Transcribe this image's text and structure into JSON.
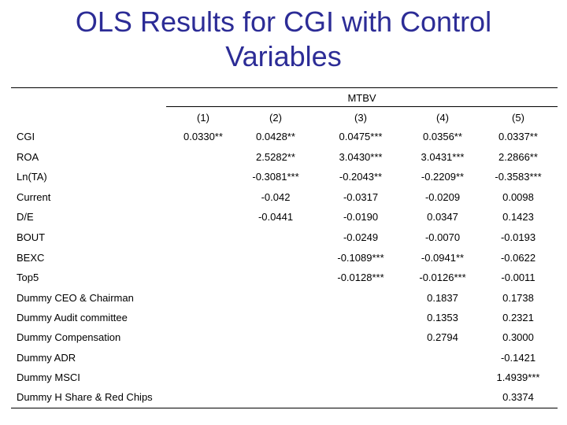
{
  "title_line1": "OLS Results for CGI with Control",
  "title_line2": "Variables",
  "table": {
    "group_header": "MTBV",
    "columns": [
      "(1)",
      "(2)",
      "(3)",
      "(4)",
      "(5)"
    ],
    "rows": [
      {
        "label": "CGI",
        "values": [
          "0.0330**",
          "0.0428**",
          "0.0475***",
          "0.0356**",
          "0.0337**"
        ]
      },
      {
        "label": "ROA",
        "values": [
          "",
          "2.5282**",
          "3.0430***",
          "3.0431***",
          "2.2866**"
        ]
      },
      {
        "label": "Ln(TA)",
        "values": [
          "",
          "-0.3081***",
          "-0.2043**",
          "-0.2209**",
          "-0.3583***"
        ]
      },
      {
        "label": "Current",
        "values": [
          "",
          "-0.042",
          "-0.0317",
          "-0.0209",
          "0.0098"
        ]
      },
      {
        "label": "D/E",
        "values": [
          "",
          "-0.0441",
          "-0.0190",
          "0.0347",
          "0.1423"
        ]
      },
      {
        "label": "BOUT",
        "values": [
          "",
          "",
          "-0.0249",
          "-0.0070",
          "-0.0193"
        ]
      },
      {
        "label": "BEXC",
        "values": [
          "",
          "",
          "-0.1089***",
          "-0.0941**",
          "-0.0622"
        ]
      },
      {
        "label": "Top5",
        "values": [
          "",
          "",
          "-0.0128***",
          "-0.0126***",
          "-0.0011"
        ]
      },
      {
        "label": "Dummy CEO & Chairman",
        "values": [
          "",
          "",
          "",
          "0.1837",
          "0.1738"
        ]
      },
      {
        "label": "Dummy Audit committee",
        "values": [
          "",
          "",
          "",
          "0.1353",
          "0.2321"
        ]
      },
      {
        "label": "Dummy Compensation",
        "values": [
          "",
          "",
          "",
          "0.2794",
          "0.3000"
        ]
      },
      {
        "label": "Dummy ADR",
        "values": [
          "",
          "",
          "",
          "",
          "-0.1421"
        ]
      },
      {
        "label": "Dummy MSCI",
        "values": [
          "",
          "",
          "",
          "",
          "1.4939***"
        ]
      },
      {
        "label": "Dummy H Share & Red Chips",
        "values": [
          "",
          "",
          "",
          "",
          "0.3374"
        ]
      }
    ]
  }
}
